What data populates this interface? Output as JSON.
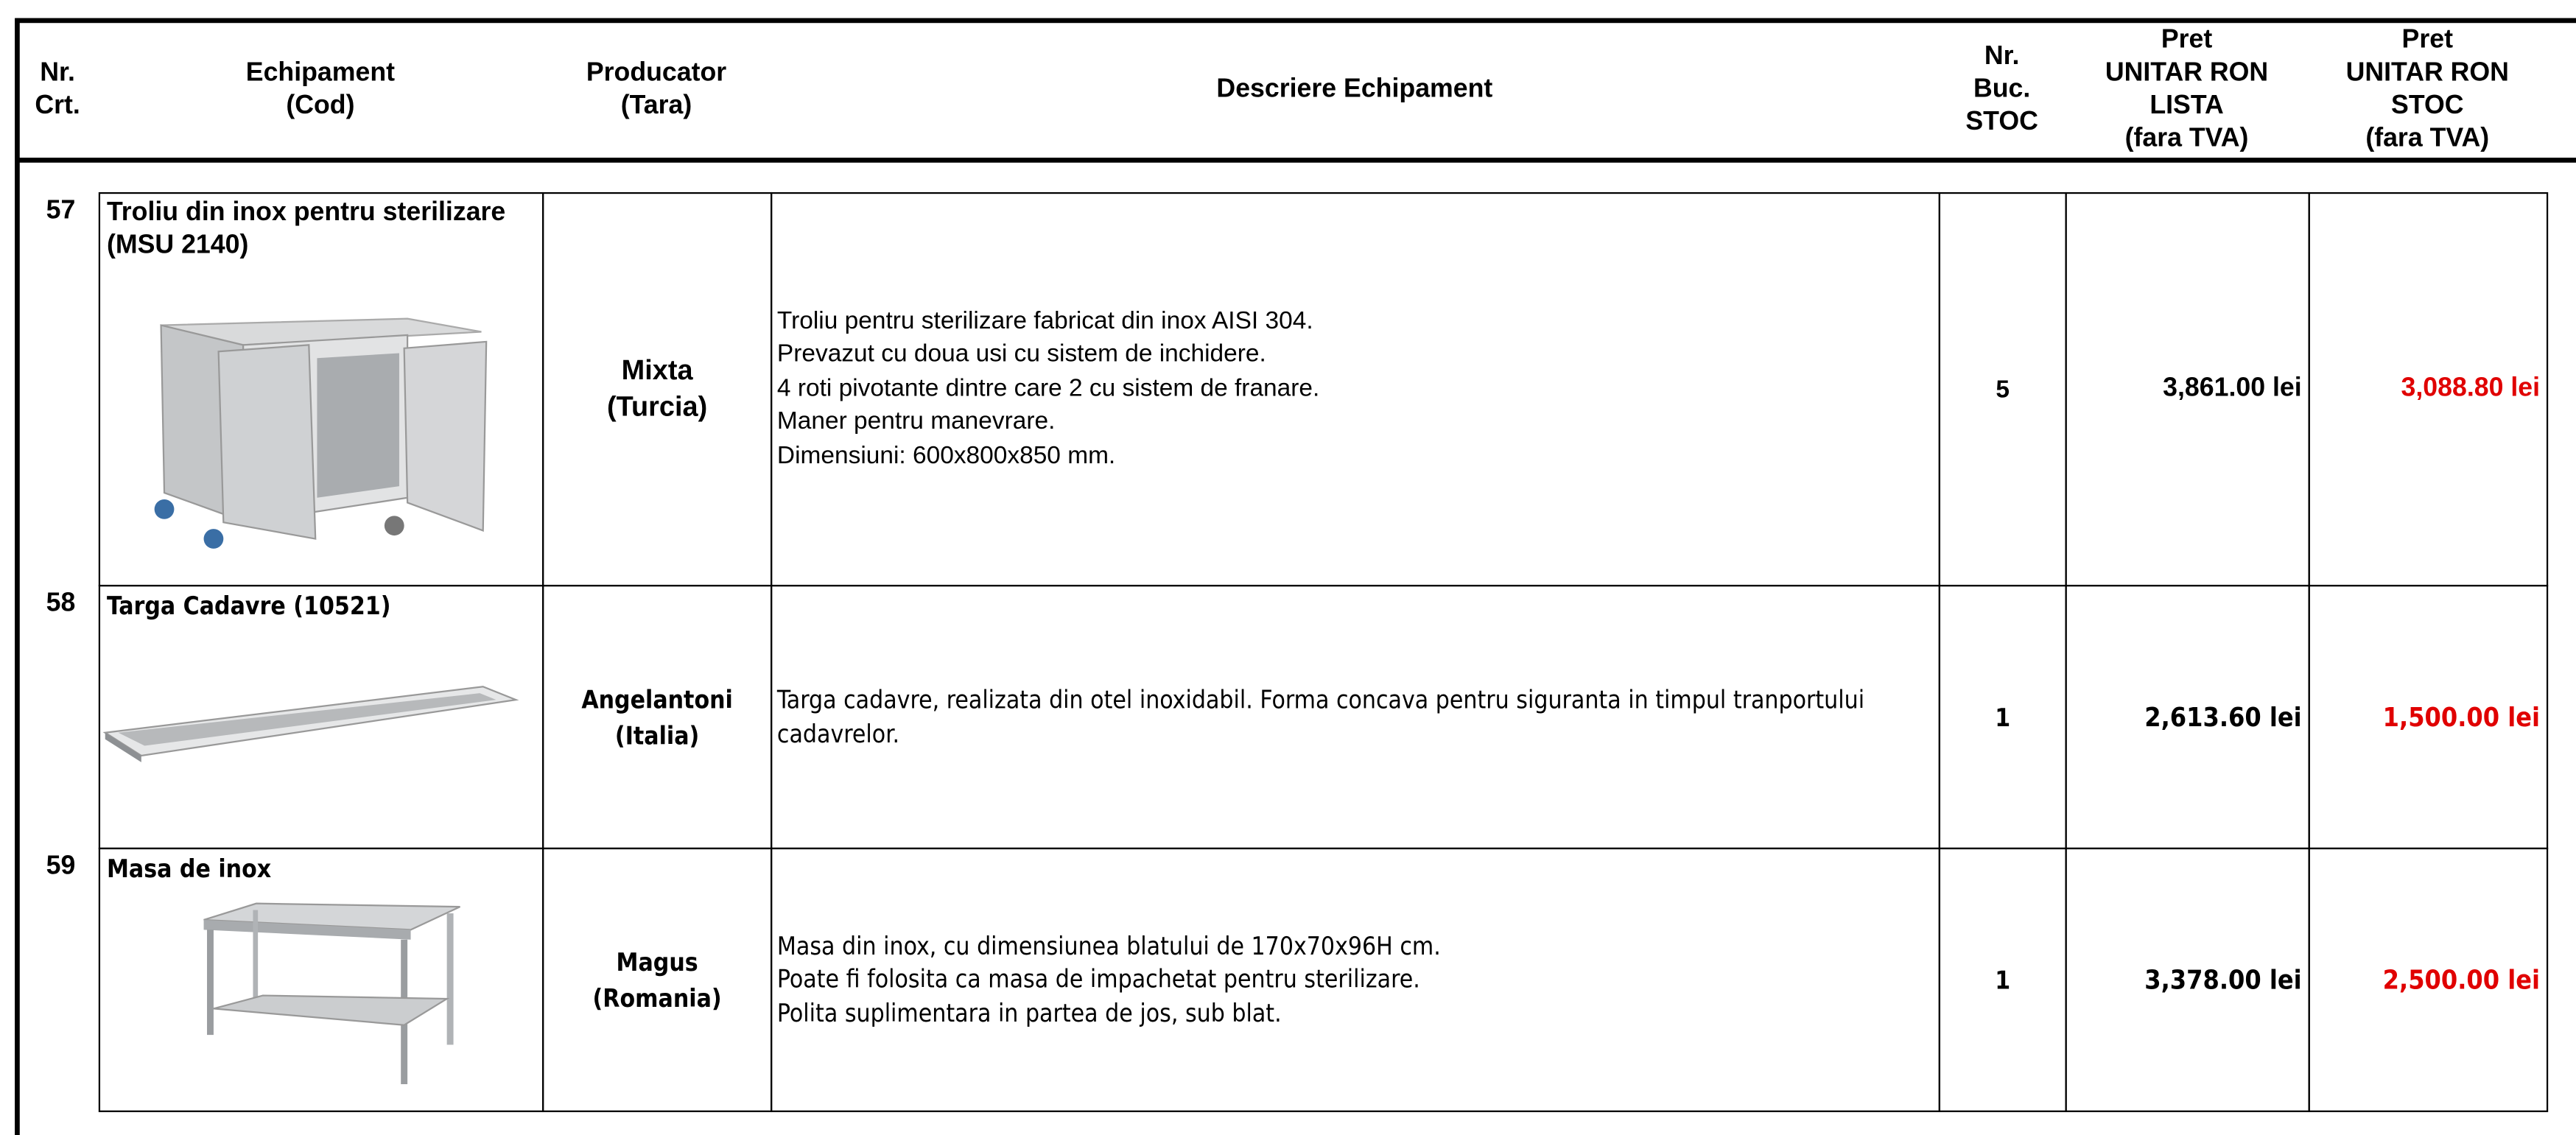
{
  "header": {
    "columns": [
      [
        "Nr.",
        "Crt."
      ],
      [
        "Echipament",
        "(Cod)"
      ],
      [
        "Producator",
        "(Tara)"
      ],
      [
        "Descriere Echipament"
      ],
      [
        "Nr.",
        "Buc.",
        "STOC"
      ],
      [
        "Pret",
        "UNITAR RON",
        "LISTA",
        "(fara TVA)"
      ],
      [
        "Pret",
        "UNITAR RON",
        "STOC",
        "(fara TVA)"
      ]
    ]
  },
  "table": {
    "rows": [
      {
        "nr": "57",
        "equipment": [
          "Troliu din inox pentru sterilizare",
          "(MSU 2140)"
        ],
        "producer": [
          "Mixta",
          "(Turcia)"
        ],
        "description": [
          "Troliu pentru sterilizare fabricat din inox AISI 304.",
          "Prevazut cu doua usi cu sistem de inchidere.",
          "4 roti pivotante dintre care 2 cu sistem de franare.",
          "Maner pentru manevrare.",
          "Dimensiuni: 600x800x850 mm."
        ],
        "stock": "5",
        "price_list": "3,861.00 lei",
        "price_stock": "3,088.80 lei"
      },
      {
        "nr": "58",
        "equipment": [
          "Targa Cadavre (10521)"
        ],
        "producer": [
          "Angelantoni",
          "(Italia)"
        ],
        "description": [
          "Targa cadavre, realizata din otel inoxidabil. Forma concava pentru siguranta in timpul tranportului",
          "cadavrelor."
        ],
        "stock": "1",
        "price_list": "2,613.60 lei",
        "price_stock": "1,500.00 lei"
      },
      {
        "nr": "59",
        "equipment": [
          "Masa de inox"
        ],
        "producer": [
          "Magus",
          "(Romania)"
        ],
        "description": [
          "Masa din inox, cu dimensiunea blatului de 170x70x96H cm.",
          "Poate fi folosita ca masa de impachetat pentru sterilizare.",
          "Polita suplimentara in partea de jos, sub blat."
        ],
        "stock": "1",
        "price_list": "3,378.00 lei",
        "price_stock": "2,500.00 lei"
      }
    ]
  }
}
